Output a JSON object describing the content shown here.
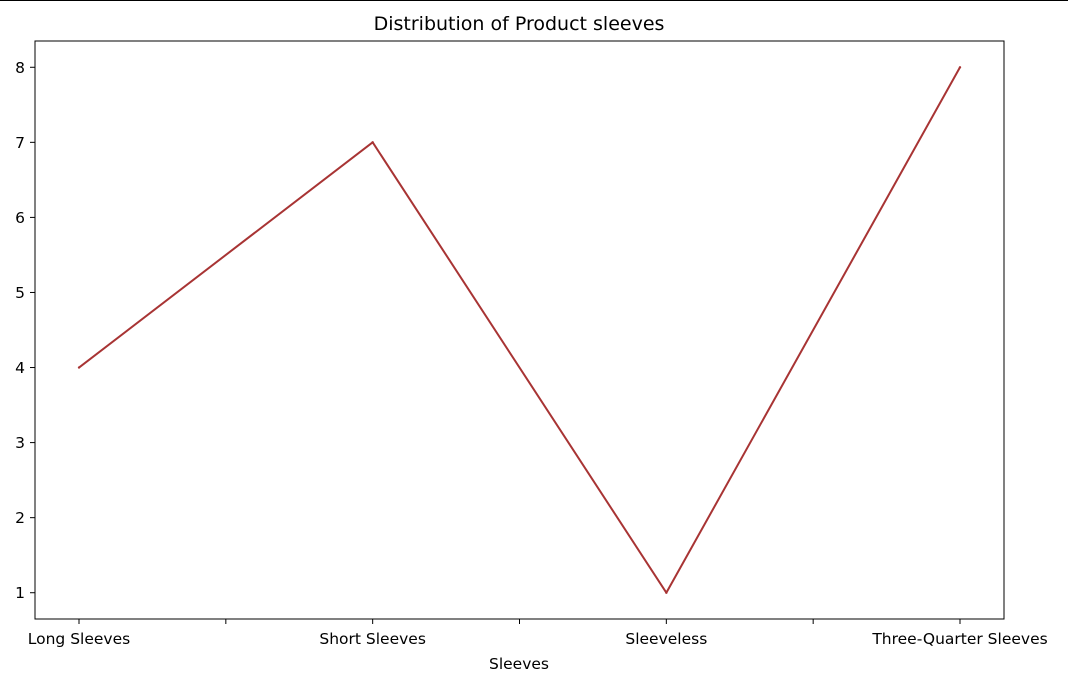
{
  "chart_data": {
    "type": "line",
    "title": "Distribution of Product sleeves",
    "xlabel": "Sleeves",
    "ylabel": "",
    "categories": [
      "Long Sleeves",
      "Short Sleeves",
      "Sleeveless",
      "Three-Quarter Sleeves"
    ],
    "series": [
      {
        "values": [
          4,
          7,
          1,
          8
        ],
        "color": "#a83434"
      }
    ],
    "yticks": [
      1,
      2,
      3,
      4,
      5,
      6,
      7,
      8
    ],
    "ylim": [
      0.65,
      8.35
    ],
    "grid": false,
    "legend": "none"
  }
}
